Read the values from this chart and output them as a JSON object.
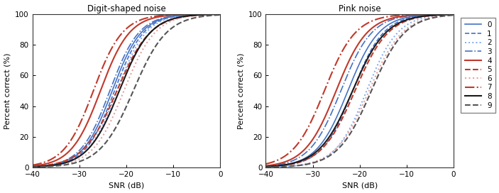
{
  "title1": "Digit-shaped noise",
  "title2": "Pink noise",
  "xlabel": "SNR (dB)",
  "ylabel": "Percent correct (%)",
  "xlim": [
    -40,
    0
  ],
  "ylim": [
    0,
    100
  ],
  "xticks": [
    -40,
    -30,
    -20,
    -10,
    0
  ],
  "yticks": [
    0,
    20,
    40,
    60,
    80,
    100
  ],
  "background": "#ffffff",
  "curves": [
    {
      "label": "0",
      "color": "#4472c4",
      "linestyle": "solid",
      "lw": 1.2,
      "dsn_snr50": -23.0,
      "dsn_slope": 0.32,
      "pink_snr50": -22.5,
      "pink_slope": 0.3
    },
    {
      "label": "1",
      "color": "#4472c4",
      "linestyle": "dashed",
      "lw": 1.2,
      "dsn_snr50": -22.5,
      "dsn_slope": 0.32,
      "pink_snr50": -21.5,
      "pink_slope": 0.3
    },
    {
      "label": "2",
      "color": "#7baaf5",
      "linestyle": "dotted",
      "lw": 1.4,
      "dsn_snr50": -22.0,
      "dsn_slope": 0.32,
      "pink_snr50": -18.5,
      "pink_slope": 0.3
    },
    {
      "label": "3",
      "color": "#4472c4",
      "linestyle": "dashdot",
      "lw": 1.2,
      "dsn_snr50": -23.5,
      "dsn_slope": 0.32,
      "pink_snr50": -24.0,
      "pink_slope": 0.3
    },
    {
      "label": "4",
      "color": "#c0392b",
      "linestyle": "solid",
      "lw": 1.5,
      "dsn_snr50": -25.5,
      "dsn_slope": 0.32,
      "pink_snr50": -25.0,
      "pink_slope": 0.3
    },
    {
      "label": "5",
      "color": "#c0392b",
      "linestyle": "dashed",
      "lw": 1.5,
      "dsn_snr50": -22.0,
      "dsn_slope": 0.28,
      "pink_snr50": -21.0,
      "pink_slope": 0.28
    },
    {
      "label": "6",
      "color": "#e8a0a0",
      "linestyle": "dotted",
      "lw": 1.5,
      "dsn_snr50": -20.5,
      "dsn_slope": 0.3,
      "pink_snr50": -18.0,
      "pink_slope": 0.28
    },
    {
      "label": "7",
      "color": "#c0392b",
      "linestyle": "dashdot",
      "lw": 1.5,
      "dsn_snr50": -27.0,
      "dsn_slope": 0.32,
      "pink_snr50": -27.5,
      "pink_slope": 0.3
    },
    {
      "label": "8",
      "color": "#1a1a1a",
      "linestyle": "solid",
      "lw": 1.5,
      "dsn_snr50": -21.5,
      "dsn_slope": 0.3,
      "pink_snr50": -21.5,
      "pink_slope": 0.28
    },
    {
      "label": "9",
      "color": "#555555",
      "linestyle": "dashed",
      "lw": 1.5,
      "dsn_snr50": -18.5,
      "dsn_slope": 0.28,
      "pink_snr50": -17.5,
      "pink_slope": 0.28
    }
  ]
}
